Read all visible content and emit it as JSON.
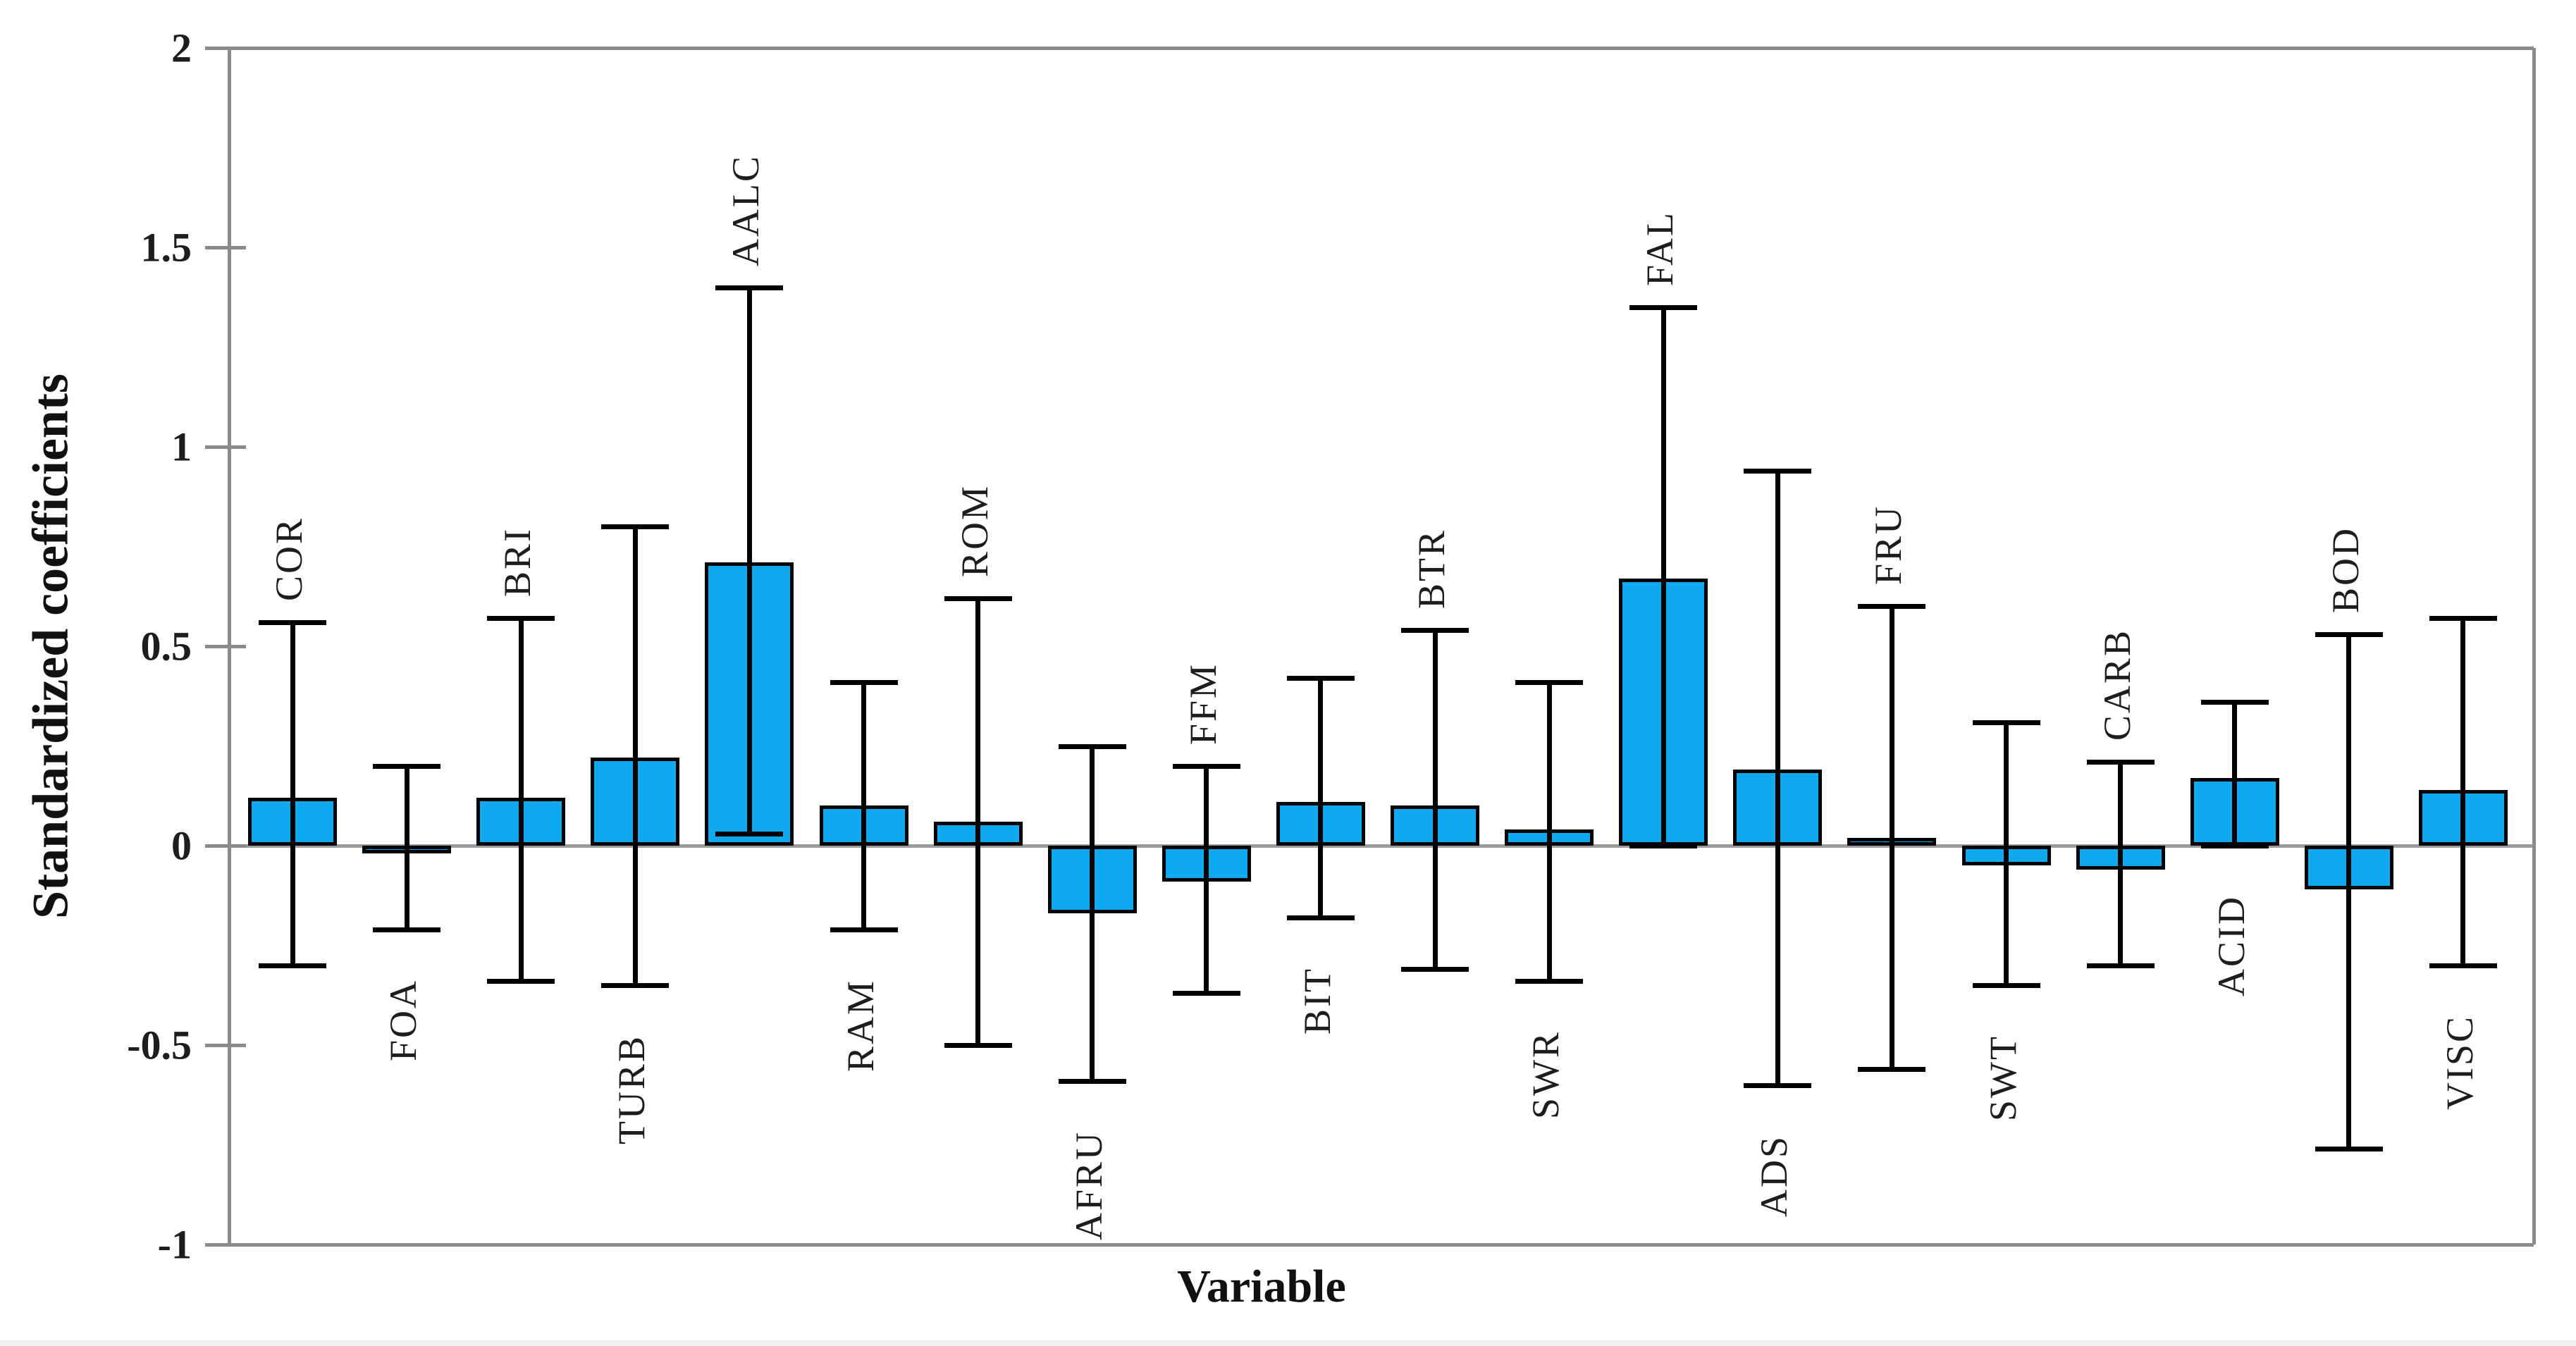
{
  "chart_data": {
    "type": "bar",
    "title": "",
    "xlabel": "Variable",
    "ylabel": "Standardized coefficients",
    "ylim": [
      -1,
      2
    ],
    "yticks": [
      2,
      1.5,
      1,
      0.5,
      0,
      -0.5,
      -1
    ],
    "ytick_labels": [
      "2",
      "1.5",
      "1",
      "0.5",
      "0",
      "-0.5",
      "-1"
    ],
    "grid": "off",
    "legend": "none",
    "categories": [
      "COR",
      "FOA",
      "BRI",
      "TURB",
      "AALC",
      "RAM",
      "ROM",
      "AFRU",
      "FFM",
      "BIT",
      "BTR",
      "SWR",
      "FAL",
      "ADS",
      "FRU",
      "SWT",
      "CARB",
      "ACID",
      "BOD",
      "VISC"
    ],
    "series": [
      {
        "name": "Standardized coefficients",
        "values": [
          0.12,
          -0.02,
          0.12,
          0.22,
          0.71,
          0.1,
          0.06,
          -0.17,
          -0.09,
          0.11,
          0.1,
          0.04,
          0.67,
          0.19,
          0.02,
          -0.05,
          -0.06,
          0.17,
          -0.11,
          0.14
        ],
        "error_low": [
          -0.3,
          -0.21,
          -0.34,
          -0.35,
          0.03,
          -0.21,
          -0.5,
          -0.59,
          -0.37,
          -0.18,
          -0.31,
          -0.34,
          0.0,
          -0.6,
          -0.56,
          -0.35,
          -0.3,
          0.0,
          -0.76,
          -0.3
        ],
        "error_high": [
          0.56,
          0.2,
          0.57,
          0.8,
          1.4,
          0.41,
          0.62,
          0.25,
          0.2,
          0.42,
          0.54,
          0.41,
          1.35,
          0.94,
          0.6,
          0.31,
          0.21,
          0.36,
          0.53,
          0.57
        ]
      }
    ],
    "label_side": [
      "above",
      "below",
      "above",
      "below",
      "above",
      "below",
      "above",
      "below",
      "above",
      "below",
      "above",
      "below",
      "above",
      "below",
      "above",
      "below",
      "above",
      "below",
      "above",
      "below"
    ],
    "colors": {
      "bar_fill": "#10a8f0",
      "bar_stroke": "#000000",
      "error_bar": "#000000",
      "axis_frame": "#8a8a8a",
      "zero_line": "#9b9b9b",
      "text": "#1d1d1d",
      "bottom_strip": "#eef0f1",
      "background": "#ffffff"
    }
  }
}
